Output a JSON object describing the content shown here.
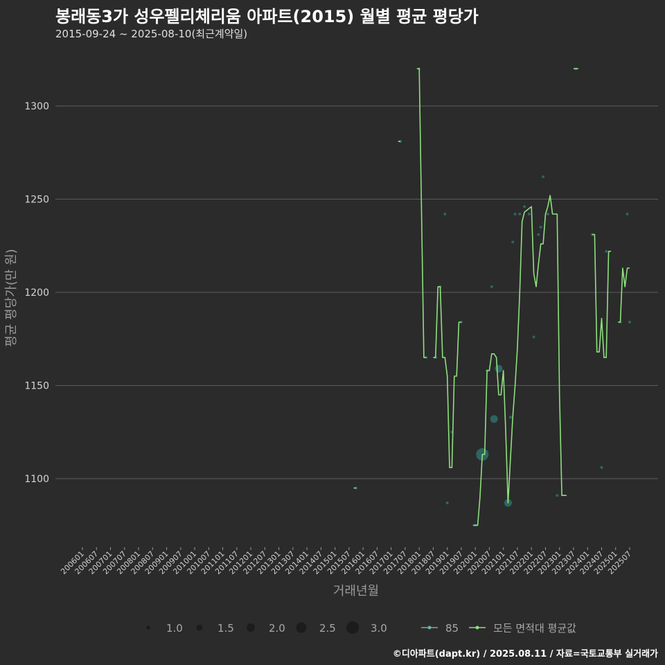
{
  "header": {
    "title": "봉래동3가 성우펠리체리움 아파트(2015) 월별 평균 평당가",
    "subtitle": "2015-09-24 ~ 2025-08-10(최근계약일)"
  },
  "footer": {
    "credit": "©디아파트(dapt.kr) / 2025.08.11 / 자료=국토교통부 실거래가"
  },
  "colors": {
    "background": "#2b2b2b",
    "avg_line": "#8ee07e",
    "point_fill": "#2f6f6a",
    "segment": "#6fb0a8"
  },
  "chart_data": {
    "type": "line",
    "title": "봉래동3가 성우펠리체리움 아파트(2015) 월별 평균 평당가",
    "xlabel": "거래년월",
    "ylabel": "평균 평당가(만 원)",
    "ylim": [
      1070,
      1320
    ],
    "yticks": [
      1100,
      1150,
      1200,
      1250,
      1300
    ],
    "x_start": "2006-01",
    "x_end": "2025-07",
    "xticks": [
      "200601",
      "200607",
      "200701",
      "200707",
      "200801",
      "200807",
      "200901",
      "200907",
      "201001",
      "201007",
      "201101",
      "201107",
      "201201",
      "201207",
      "201301",
      "201307",
      "201401",
      "201407",
      "201501",
      "201507",
      "201601",
      "201607",
      "201701",
      "201707",
      "201801",
      "201807",
      "201901",
      "201907",
      "202001",
      "202007",
      "202101",
      "202107",
      "202201",
      "202207",
      "202301",
      "202307",
      "202401",
      "202407",
      "202501",
      "202507"
    ],
    "series": [
      {
        "name": "모든 면적대 평균값",
        "style": "line",
        "segments": [
          [
            [
              "2015-09",
              1095
            ],
            [
              "2015-10",
              1095
            ]
          ],
          [
            [
              "2017-04",
              1281
            ],
            [
              "2017-05",
              1281
            ]
          ],
          [
            [
              "2017-12",
              1320
            ],
            [
              "2018-01",
              1320
            ],
            [
              "2018-03",
              1165
            ],
            [
              "2018-04",
              1165
            ]
          ],
          [
            [
              "2018-07",
              1165
            ],
            [
              "2018-08",
              1165
            ],
            [
              "2018-09",
              1203
            ],
            [
              "2018-10",
              1203
            ],
            [
              "2018-11",
              1165
            ],
            [
              "2018-12",
              1165
            ],
            [
              "2019-01",
              1155
            ],
            [
              "2019-02",
              1106
            ],
            [
              "2019-03",
              1106
            ],
            [
              "2019-04",
              1155
            ],
            [
              "2019-05",
              1155
            ],
            [
              "2019-06",
              1184
            ],
            [
              "2019-07",
              1184
            ]
          ],
          [
            [
              "2019-12",
              1075
            ],
            [
              "2020-01",
              1075
            ],
            [
              "2020-02",
              1075
            ],
            [
              "2020-03",
              1090
            ],
            [
              "2020-04",
              1113
            ],
            [
              "2020-05",
              1113
            ],
            [
              "2020-06",
              1158
            ],
            [
              "2020-07",
              1158
            ],
            [
              "2020-08",
              1167
            ],
            [
              "2020-09",
              1167
            ],
            [
              "2020-10",
              1165
            ],
            [
              "2020-11",
              1145
            ],
            [
              "2020-12",
              1145
            ],
            [
              "2021-01",
              1158
            ],
            [
              "2021-02",
              1125
            ],
            [
              "2021-03",
              1087
            ],
            [
              "2021-04",
              1110
            ],
            [
              "2021-05",
              1133
            ],
            [
              "2021-06",
              1150
            ],
            [
              "2021-07",
              1170
            ],
            [
              "2021-08",
              1200
            ],
            [
              "2021-09",
              1238
            ],
            [
              "2021-10",
              1243
            ],
            [
              "2021-11",
              1244
            ],
            [
              "2021-12",
              1245
            ],
            [
              "2022-01",
              1246
            ],
            [
              "2022-02",
              1210
            ],
            [
              "2022-03",
              1203
            ],
            [
              "2022-04",
              1215
            ],
            [
              "2022-05",
              1226
            ],
            [
              "2022-06",
              1226
            ],
            [
              "2022-07",
              1242
            ],
            [
              "2022-08",
              1246
            ],
            [
              "2022-09",
              1252
            ],
            [
              "2022-10",
              1242
            ],
            [
              "2022-11",
              1242
            ],
            [
              "2022-12",
              1242
            ],
            [
              "2023-01",
              1145
            ],
            [
              "2023-02",
              1091
            ],
            [
              "2023-03",
              1091
            ],
            [
              "2023-04",
              1091
            ]
          ],
          [
            [
              "2023-07",
              1320
            ],
            [
              "2023-08",
              1320
            ],
            [
              "2023-09",
              1320
            ]
          ],
          [
            [
              "2024-03",
              1231
            ],
            [
              "2024-04",
              1231
            ],
            [
              "2024-05",
              1168
            ],
            [
              "2024-06",
              1168
            ],
            [
              "2024-07",
              1186
            ],
            [
              "2024-08",
              1165
            ],
            [
              "2024-09",
              1165
            ],
            [
              "2024-10",
              1222
            ],
            [
              "2024-11",
              1222
            ]
          ],
          [
            [
              "2025-02",
              1184
            ],
            [
              "2025-03",
              1184
            ],
            [
              "2025-04",
              1213
            ],
            [
              "2025-05",
              1203
            ],
            [
              "2025-06",
              1213
            ],
            [
              "2025-07",
              1213
            ]
          ]
        ]
      },
      {
        "name": "85",
        "style": "points",
        "points": [
          [
            "2015-10",
            1095,
            1
          ],
          [
            "2017-05",
            1281,
            1
          ],
          [
            "2018-01",
            1320,
            1
          ],
          [
            "2018-04",
            1165,
            1
          ],
          [
            "2018-08",
            1165,
            1
          ],
          [
            "2018-10",
            1203,
            1
          ],
          [
            "2018-12",
            1242,
            1
          ],
          [
            "2019-01",
            1087,
            1
          ],
          [
            "2019-03",
            1125,
            1
          ],
          [
            "2019-07",
            1184,
            1
          ],
          [
            "2020-01",
            1075,
            1
          ],
          [
            "2020-04",
            1113,
            3
          ],
          [
            "2020-06",
            1158,
            1
          ],
          [
            "2020-08",
            1203,
            1
          ],
          [
            "2020-09",
            1132,
            2
          ],
          [
            "2020-11",
            1159,
            2
          ],
          [
            "2021-03",
            1087,
            2
          ],
          [
            "2021-04",
            1133,
            1
          ],
          [
            "2021-05",
            1227,
            1
          ],
          [
            "2021-06",
            1242,
            1
          ],
          [
            "2021-08",
            1242,
            1
          ],
          [
            "2021-10",
            1246,
            1
          ],
          [
            "2021-12",
            1242,
            1
          ],
          [
            "2022-02",
            1176,
            1
          ],
          [
            "2022-04",
            1231,
            1
          ],
          [
            "2022-05",
            1235,
            1
          ],
          [
            "2022-06",
            1262,
            1
          ],
          [
            "2022-08",
            1242,
            1
          ],
          [
            "2022-12",
            1091,
            1
          ],
          [
            "2023-08",
            1320,
            1
          ],
          [
            "2024-03",
            1231,
            1
          ],
          [
            "2024-07",
            1106,
            1
          ],
          [
            "2024-09",
            1222,
            1
          ],
          [
            "2025-03",
            1184,
            1
          ],
          [
            "2025-06",
            1242,
            1
          ],
          [
            "2025-07",
            1184,
            1
          ]
        ]
      }
    ],
    "legend": {
      "size_items": [
        "1.0",
        "1.5",
        "2.0",
        "2.5",
        "3.0"
      ],
      "series_items": [
        "85",
        "모든 면적대 평균값"
      ],
      "position": "bottom"
    }
  }
}
